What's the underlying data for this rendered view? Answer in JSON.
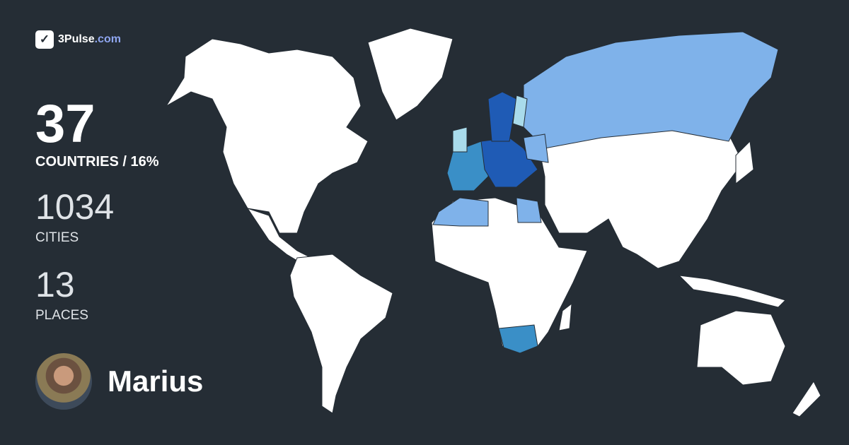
{
  "brand": {
    "name": "3Pulse",
    "domain": ".com",
    "icon": "checkmark-pulse-icon"
  },
  "stats": {
    "countries": {
      "value": "37",
      "label": "COUNTRIES / 16%"
    },
    "cities": {
      "value": "1034",
      "label": "CITIES"
    },
    "places": {
      "value": "13",
      "label": "PLACES"
    }
  },
  "user": {
    "name": "Marius"
  },
  "colors": {
    "background": "#252d35",
    "land": "#ffffff",
    "visited_dark": "#1f5bb5",
    "visited_mid": "#3a8fc7",
    "visited_light": "#7fb2ea",
    "visited_pale": "#a9dbeb"
  }
}
